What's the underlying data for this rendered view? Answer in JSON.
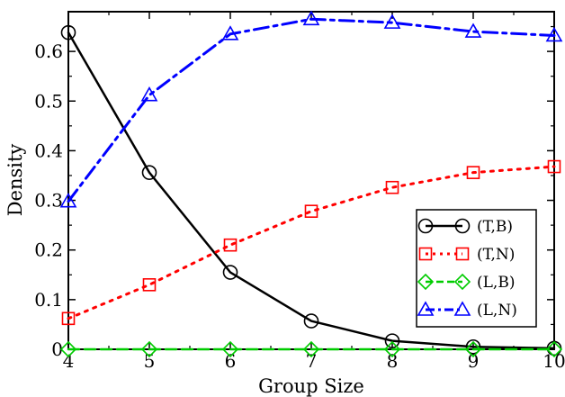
{
  "chart_data": {
    "type": "line",
    "title": "",
    "xlabel": "Group Size",
    "ylabel": "Density",
    "x": [
      4,
      5,
      6,
      7,
      8,
      9,
      10
    ],
    "xlim": [
      4,
      10
    ],
    "ylim": [
      0,
      0.68
    ],
    "xticks": [
      "4",
      "5",
      "6",
      "7",
      "8",
      "9",
      "10"
    ],
    "yticks": [
      "0",
      "0.1",
      "0.2",
      "0.3",
      "0.4",
      "0.5",
      "0.6"
    ],
    "grid": false,
    "legend_position": "center-right",
    "series": [
      {
        "name": "(T,B)",
        "values": [
          0.638,
          0.356,
          0.155,
          0.057,
          0.017,
          0.005,
          0.002
        ],
        "color": "#000000",
        "marker": "circle",
        "line": "solid"
      },
      {
        "name": "(T,N)",
        "values": [
          0.062,
          0.13,
          0.21,
          0.278,
          0.326,
          0.356,
          0.368
        ],
        "color": "#ff0000",
        "marker": "square",
        "line": "dotted"
      },
      {
        "name": "(L,B)",
        "values": [
          0.0,
          0.0,
          0.0,
          0.0,
          0.0,
          0.0,
          0.0
        ],
        "color": "#00cc00",
        "marker": "diamond",
        "line": "dashed"
      },
      {
        "name": "(L,N)",
        "values": [
          0.298,
          0.512,
          0.635,
          0.665,
          0.658,
          0.64,
          0.632
        ],
        "color": "#0000ff",
        "marker": "triangle",
        "line": "dashdot"
      }
    ]
  }
}
